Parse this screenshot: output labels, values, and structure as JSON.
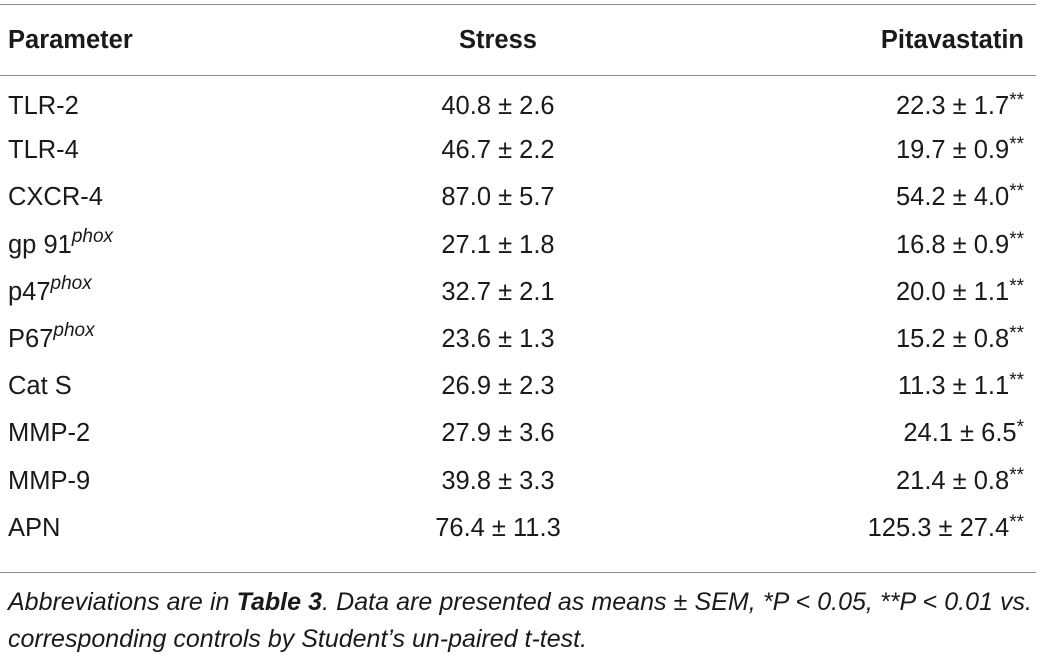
{
  "table": {
    "headers": {
      "parameter": "Parameter",
      "stress": "Stress",
      "pitavastatin": "Pitavastatin"
    },
    "rows": [
      {
        "name": "TLR-2",
        "sup": "",
        "stress": "40.8 ± 2.6",
        "pitavastatin": "22.3 ± 1.7",
        "sig": "**"
      },
      {
        "name": "TLR-4",
        "sup": "",
        "stress": "46.7 ± 2.2",
        "pitavastatin": "19.7 ± 0.9",
        "sig": "**"
      },
      {
        "name": "CXCR-4",
        "sup": "",
        "stress": "87.0 ± 5.7",
        "pitavastatin": "54.2 ± 4.0",
        "sig": "**"
      },
      {
        "name": "gp 91",
        "sup": "phox",
        "stress": "27.1 ± 1.8",
        "pitavastatin": "16.8 ± 0.9",
        "sig": "**"
      },
      {
        "name": "p47",
        "sup": "phox",
        "stress": "32.7 ± 2.1",
        "pitavastatin": "20.0 ± 1.1",
        "sig": "**"
      },
      {
        "name": "P67",
        "sup": "phox",
        "stress": "23.6 ± 1.3",
        "pitavastatin": "15.2 ± 0.8",
        "sig": "**"
      },
      {
        "name": "Cat S",
        "sup": "",
        "stress": "26.9 ± 2.3",
        "pitavastatin": "11.3 ± 1.1",
        "sig": "**"
      },
      {
        "name": "MMP-2",
        "sup": "",
        "stress": "27.9 ± 3.6",
        "pitavastatin": "24.1 ± 6.5",
        "sig": "*"
      },
      {
        "name": "MMP-9",
        "sup": "",
        "stress": "39.8 ± 3.3",
        "pitavastatin": "21.4 ± 0.8",
        "sig": "**"
      },
      {
        "name": "APN",
        "sup": "",
        "stress": "76.4 ± 11.3",
        "pitavastatin": "125.3 ± 27.4",
        "sig": "**"
      }
    ]
  },
  "footnote": {
    "prefix": "Abbreviations are in ",
    "ref": "Table 3",
    "suffix": ". Data are presented as means ± SEM, *P < 0.05, **P < 0.01 vs. corresponding controls by Student’s un-paired t-test."
  }
}
